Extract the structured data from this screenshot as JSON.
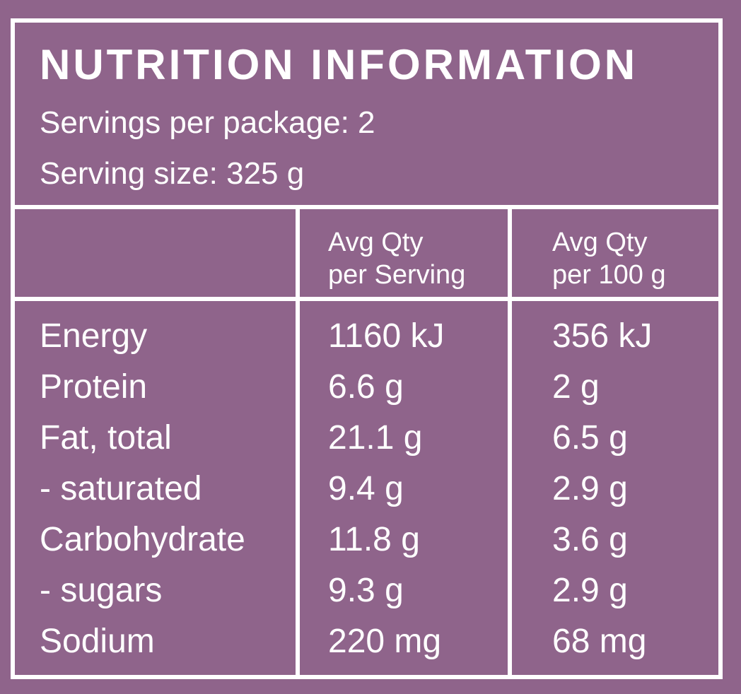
{
  "title": "NUTRITION INFORMATION",
  "servings_per_package": "Servings per package: 2",
  "serving_size": "Serving size: 325 g",
  "columns": {
    "per_serving": [
      "Avg Qty",
      "per Serving"
    ],
    "per_100g": [
      "Avg Qty",
      "per 100 g"
    ]
  },
  "rows": [
    {
      "nutrient": "Energy",
      "per_serving": "1160 kJ",
      "per_100g": "356 kJ"
    },
    {
      "nutrient": "Protein",
      "per_serving": "6.6 g",
      "per_100g": "2 g"
    },
    {
      "nutrient": "Fat, total",
      "per_serving": "21.1 g",
      "per_100g": "6.5 g"
    },
    {
      "nutrient": "- saturated",
      "per_serving": "9.4 g",
      "per_100g": "2.9 g"
    },
    {
      "nutrient": "Carbohydrate",
      "per_serving": "11.8 g",
      "per_100g": "3.6 g"
    },
    {
      "nutrient": "- sugars",
      "per_serving": "9.3 g",
      "per_100g": "2.9 g"
    },
    {
      "nutrient": "Sodium",
      "per_serving": "220 mg",
      "per_100g": "68 mg"
    }
  ],
  "colors": {
    "background": "#8f648b",
    "foreground": "#ffffff"
  }
}
